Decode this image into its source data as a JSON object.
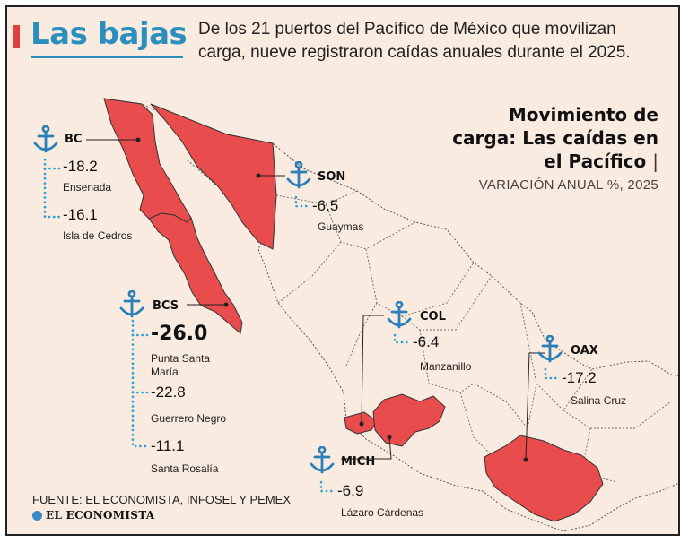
{
  "header": {
    "title": "Las bajas",
    "intro": "De los 21 puertos del Pacífico de México que movilizan carga, nueve registraron caídas anuales durante el 2025."
  },
  "chart": {
    "title": "Movimiento de carga: Las caídas en el Pacífico",
    "cursor": "|",
    "subtitle": "VARIACIÓN ANUAL %, 2025"
  },
  "chart_data": {
    "type": "table",
    "title": "Movimiento de carga: Las caídas en el Pacífico",
    "subtitle": "VARIACIÓN ANUAL %, 2025",
    "unit": "%",
    "states": [
      {
        "state": "BC",
        "ports": [
          {
            "port": "Ensenada",
            "value": -18.2
          },
          {
            "port": "Isla de Cedros",
            "value": -16.1
          }
        ]
      },
      {
        "state": "SON",
        "ports": [
          {
            "port": "Guaymas",
            "value": -6.5
          }
        ]
      },
      {
        "state": "BCS",
        "ports": [
          {
            "port": "Punta Santa María",
            "value": -26.0
          },
          {
            "port": "Guerrero Negro",
            "value": -22.8
          },
          {
            "port": "Santa Rosalía",
            "value": -11.1
          }
        ]
      },
      {
        "state": "COL",
        "ports": [
          {
            "port": "Manzanillo",
            "value": -6.4
          }
        ]
      },
      {
        "state": "OAX",
        "ports": [
          {
            "port": "Salina Cruz",
            "value": -17.2
          }
        ]
      },
      {
        "state": "MICH",
        "ports": [
          {
            "port": "Lázaro Cárdenas",
            "value": -6.9
          }
        ]
      }
    ]
  },
  "labels": {
    "bc": {
      "state": "BC",
      "v1": "-18.2",
      "p1": "Ensenada",
      "v2": "-16.1",
      "p2": "Isla de Cedros"
    },
    "son": {
      "state": "SON",
      "v1": "-6.5",
      "p1": "Guaymas"
    },
    "bcs": {
      "state": "BCS",
      "v1": "-26.0",
      "p1a": "Punta Santa",
      "p1b": "María",
      "v2": "-22.8",
      "p2": "Guerrero Negro",
      "v3": "-11.1",
      "p3": "Santa Rosalía"
    },
    "col": {
      "state": "COL",
      "v1": "-6.4",
      "p1": "Manzanillo"
    },
    "oax": {
      "state": "OAX",
      "v1": "-17.2",
      "p1": "Salina Cruz"
    },
    "mich": {
      "state": "MICH",
      "v1": "-6.9",
      "p1": "Lázaro Cárdenas"
    }
  },
  "footer": {
    "source": "FUENTE: EL ECONOMISTA, INFOSEL Y PEMEX",
    "logo": "EL ECONOMISTA"
  },
  "colors": {
    "background": "#faebe0",
    "highlight": "#e84c4c",
    "title_accent": "#2a8fbd",
    "anchor": "#2a7fb8",
    "dots": "#2a9fd6",
    "accent_bar": "#e0413c"
  }
}
